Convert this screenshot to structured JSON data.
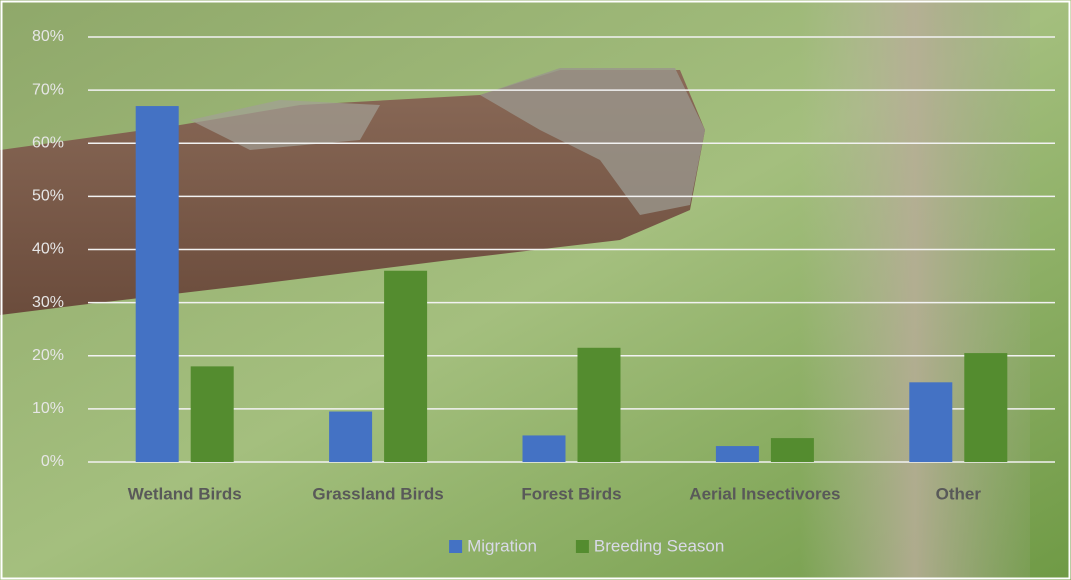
{
  "chart_data": {
    "type": "bar",
    "categories": [
      "Wetland Birds",
      "Grassland Birds",
      "Forest Birds",
      "Aerial Insectivores",
      "Other"
    ],
    "series": [
      {
        "name": "Migration",
        "color": "#4472c4",
        "values": [
          67,
          9.5,
          5,
          3,
          15
        ]
      },
      {
        "name": "Breeding Season",
        "color": "#548c2f",
        "values": [
          18,
          36,
          21.5,
          4.5,
          20.5
        ]
      }
    ],
    "ylim": [
      0,
      80
    ],
    "yticks": [
      {
        "value": 0,
        "label": "0%"
      },
      {
        "value": 10,
        "label": "10%"
      },
      {
        "value": 20,
        "label": "20%"
      },
      {
        "value": 30,
        "label": "30%"
      },
      {
        "value": 40,
        "label": "40%"
      },
      {
        "value": 50,
        "label": "50%"
      },
      {
        "value": 60,
        "label": "60%"
      },
      {
        "value": 70,
        "label": "70%"
      },
      {
        "value": 80,
        "label": "80%"
      }
    ],
    "grid": true,
    "legend": "bottom"
  }
}
